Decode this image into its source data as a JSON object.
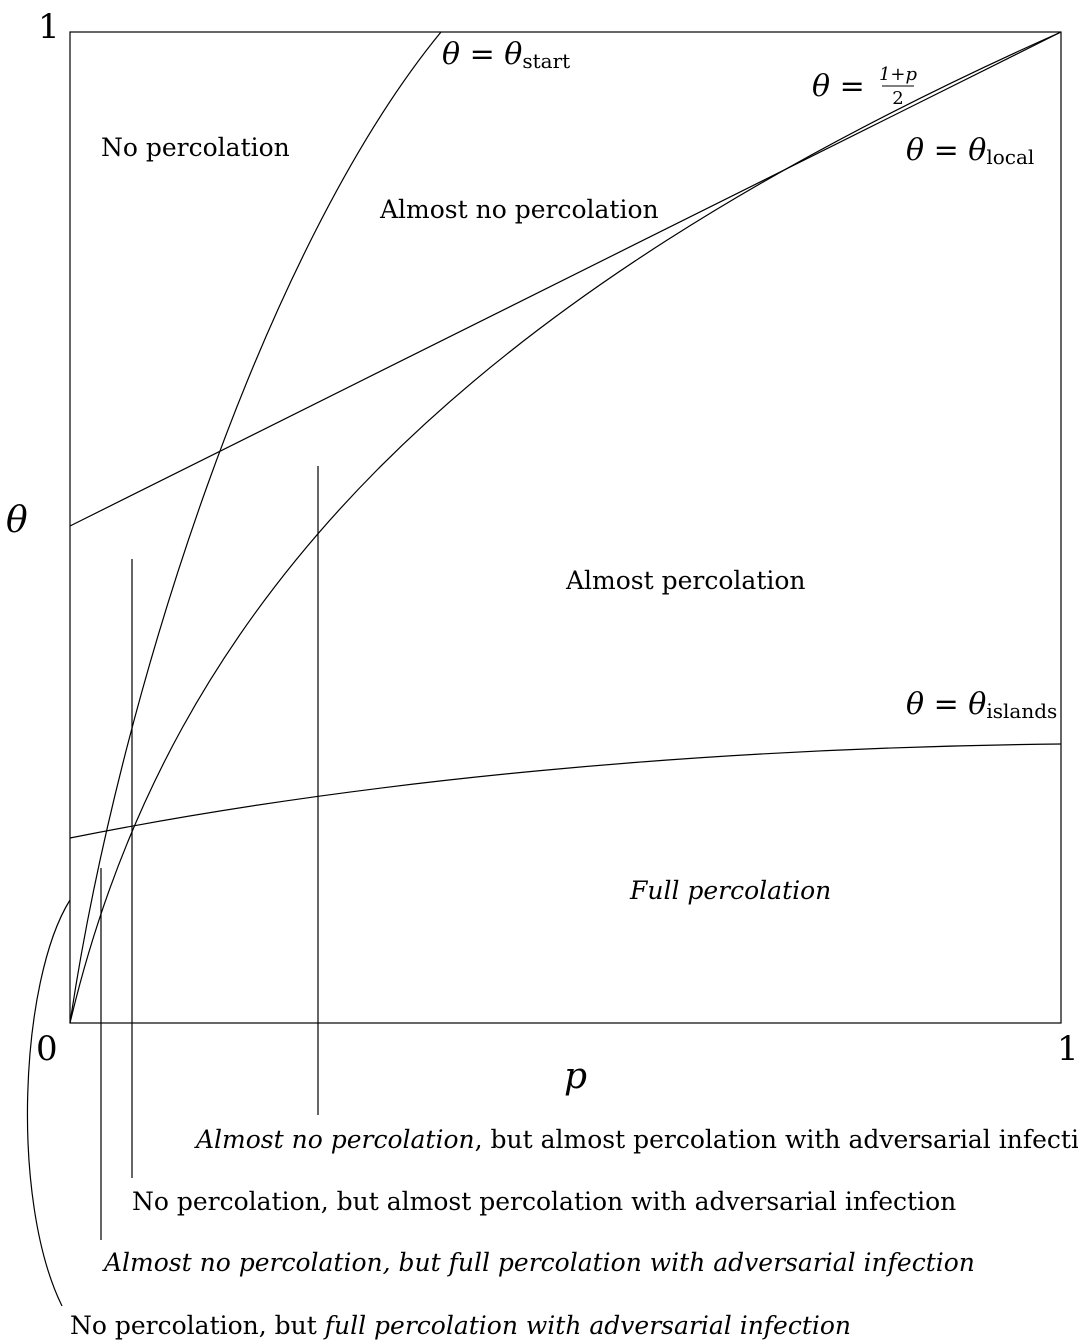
{
  "axes": {
    "y_top": "1",
    "origin": "0",
    "x_right": "1",
    "x_label": "p",
    "y_label": "θ"
  },
  "curves": {
    "start": {
      "lhs": "θ = θ",
      "sub": "start"
    },
    "local": {
      "lhs": "θ = θ",
      "sub": "local"
    },
    "islands": {
      "lhs": "θ = θ",
      "sub": "islands"
    },
    "line": {
      "lhs": "θ =",
      "num": "1+p",
      "den": "2"
    }
  },
  "regions": {
    "no_percolation": "No percolation",
    "almost_no_percolation": "Almost no percolation",
    "almost_percolation": "Almost percolation",
    "full_percolation": "Full percolation"
  },
  "annotations": {
    "a1": {
      "italic": "Almost no percolation",
      "plain": ", but almost percolation with adversarial infection"
    },
    "a2": {
      "plain": "No percolation, but almost percolation with adversarial infection"
    },
    "a3": {
      "italic": "Almost no percolation, but full percolation with adversarial infection"
    },
    "a4": {
      "plain": "No percolation, but ",
      "italic": "full percolation with adversarial infection"
    }
  }
}
